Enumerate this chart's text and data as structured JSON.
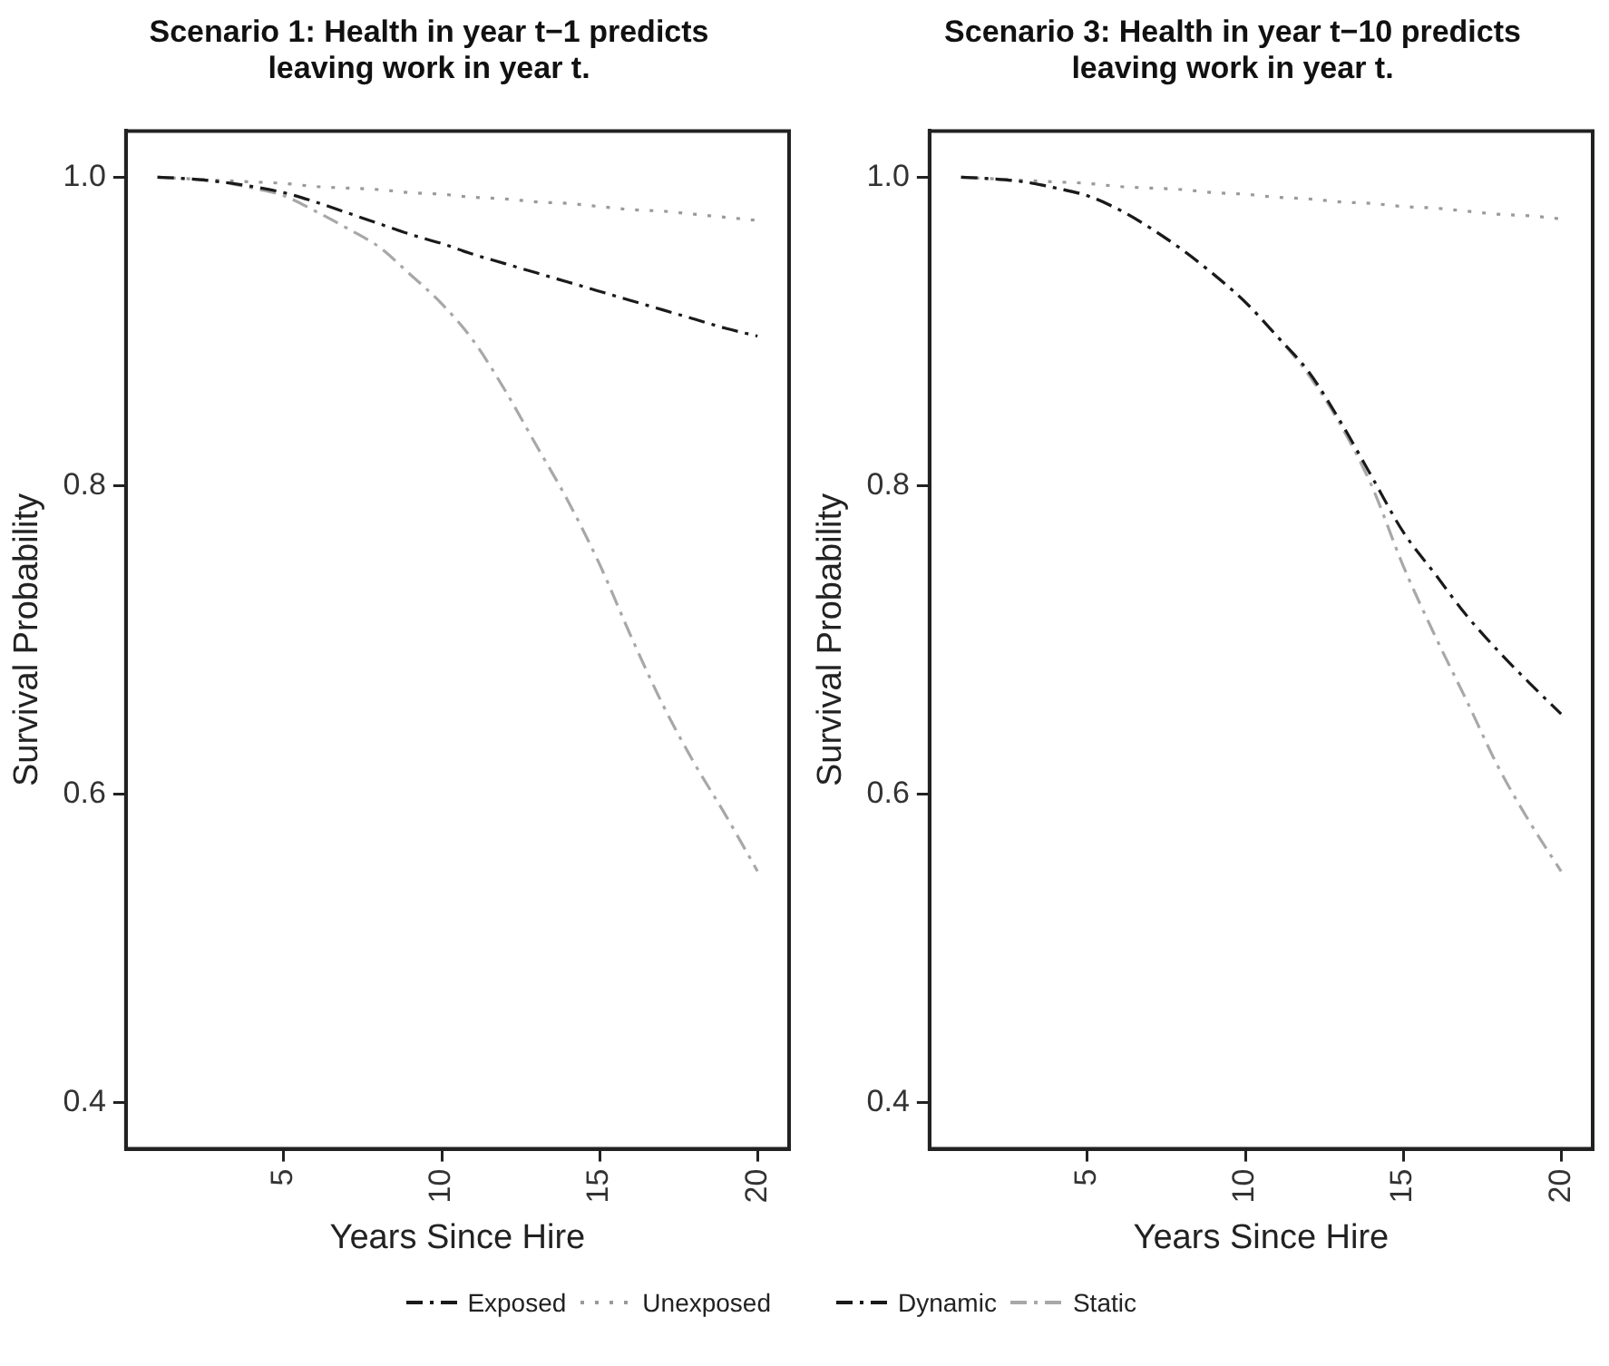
{
  "chart_data": [
    {
      "type": "line",
      "title": "Scenario 1: Health in year t−1 predicts leaving work in year t.",
      "xlabel": "Years Since Hire",
      "ylabel": "Survival Probability",
      "x": [
        1,
        2,
        3,
        4,
        5,
        6,
        7,
        8,
        9,
        10,
        11,
        12,
        13,
        14,
        15,
        16,
        17,
        18,
        19,
        20
      ],
      "xlim": [
        0,
        21
      ],
      "xticks": [
        5,
        10,
        15,
        20
      ],
      "ylim": [
        0.37,
        1.03
      ],
      "yticks": [
        0.4,
        0.6,
        0.8,
        {
          "value": 1.0,
          "label": "1.0"
        }
      ],
      "grid": false,
      "legend": "bottom right",
      "marker": "none",
      "series": [
        {
          "name": "Exposed",
          "color": "#1a1a1a",
          "line_style": "dashdot",
          "values": [
            1.0,
            0.999,
            0.997,
            0.994,
            0.99,
            0.984,
            0.977,
            0.97,
            0.963,
            0.957,
            0.95,
            0.944,
            0.938,
            0.932,
            0.926,
            0.92,
            0.914,
            0.908,
            0.902,
            0.897
          ]
        },
        {
          "name": "Unexposed",
          "color": "#9a9a9a",
          "line_style": "dotted",
          "values": [
            1.0,
            0.999,
            0.998,
            0.997,
            0.996,
            0.994,
            0.993,
            0.992,
            0.99,
            0.989,
            0.987,
            0.986,
            0.984,
            0.983,
            0.981,
            0.979,
            0.978,
            0.976,
            0.974,
            0.972
          ]
        },
        {
          "color": "#a8a8a8",
          "line_style": "dashdot",
          "values": [
            1.0,
            0.999,
            0.997,
            0.993,
            0.988,
            0.978,
            0.967,
            0.955,
            0.937,
            0.918,
            0.894,
            0.862,
            0.826,
            0.79,
            0.749,
            0.702,
            0.658,
            0.62,
            0.586,
            0.55
          ]
        }
      ]
    },
    {
      "type": "line",
      "title": "Scenario 3: Health in year t−10 predicts leaving work in year t.",
      "xlabel": "Years Since Hire",
      "ylabel": "Survival Probability",
      "x": [
        1,
        2,
        3,
        4,
        5,
        6,
        7,
        8,
        9,
        10,
        11,
        12,
        13,
        14,
        15,
        16,
        17,
        18,
        19,
        20
      ],
      "xlim": [
        0,
        21
      ],
      "xticks": [
        5,
        10,
        15,
        20
      ],
      "ylim": [
        0.37,
        1.03
      ],
      "yticks": [
        0.4,
        0.6,
        0.8,
        {
          "value": 1.0,
          "label": "1.0"
        }
      ],
      "grid": false,
      "legend": "bottom left",
      "marker": "none",
      "series": [
        {
          "name": "Dynamic",
          "color": "#1a1a1a",
          "line_style": "dashdot",
          "values": [
            1.0,
            0.999,
            0.997,
            0.993,
            0.988,
            0.979,
            0.967,
            0.953,
            0.937,
            0.919,
            0.897,
            0.874,
            0.842,
            0.806,
            0.77,
            0.743,
            0.716,
            0.693,
            0.672,
            0.652
          ]
        },
        {
          "color": "#9a9a9a",
          "line_style": "dotted",
          "values": [
            1.0,
            0.999,
            0.998,
            0.997,
            0.996,
            0.994,
            0.993,
            0.992,
            0.99,
            0.989,
            0.987,
            0.986,
            0.984,
            0.983,
            0.981,
            0.98,
            0.978,
            0.976,
            0.975,
            0.973
          ]
        },
        {
          "name": "Static",
          "color": "#a8a8a8",
          "line_style": "dashdot",
          "values": [
            1.0,
            0.999,
            0.997,
            0.993,
            0.988,
            0.979,
            0.967,
            0.953,
            0.937,
            0.919,
            0.897,
            0.872,
            0.84,
            0.8,
            0.748,
            0.703,
            0.661,
            0.618,
            0.582,
            0.55
          ]
        }
      ]
    }
  ]
}
